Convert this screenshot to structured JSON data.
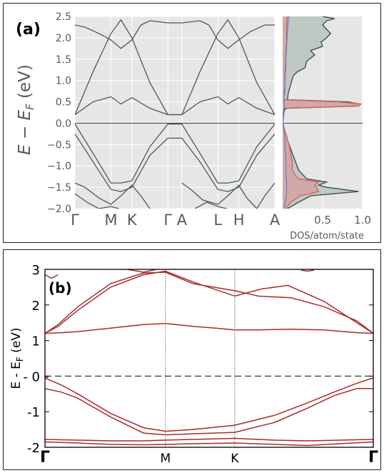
{
  "chart_data": [
    {
      "panel": "(a)",
      "type": "line",
      "subplots": [
        {
          "name": "band-structure",
          "ylabel_main": "E − E",
          "ylabel_sub": "F",
          "ylabel_unit": " (eV)",
          "ylim": [
            -2.0,
            2.5
          ],
          "yticks": [
            -2.0,
            -1.5,
            -1.0,
            -0.5,
            0.0,
            0.5,
            1.0,
            1.5,
            2.0,
            2.5
          ],
          "ytick_labels": [
            "−2.0",
            "−1.5",
            "−1.0",
            "−0.5",
            "0.0",
            "0.5",
            "1.0",
            "1.5",
            "2.0",
            "2.5"
          ],
          "kpoint_labels": [
            "Γ",
            "M",
            "K",
            "Γ",
            "A",
            "L",
            "H",
            "A"
          ],
          "kpoint_positions": [
            0.0,
            0.18,
            0.285,
            0.465,
            0.535,
            0.715,
            0.82,
            1.0
          ],
          "grid": true,
          "background": "#e6e6e6",
          "line_color": "#4a5a55",
          "fermi_line_color": "#3b3f63",
          "fermi_level": 0.0,
          "series": [
            {
              "x": [
                0.0,
                0.09,
                0.18,
                0.23,
                0.285,
                0.375,
                0.465,
                0.535,
                0.625,
                0.715,
                0.765,
                0.82,
                0.91,
                1.0
              ],
              "values": [
                0.2,
                1.2,
                2.1,
                2.42,
                2.0,
                0.95,
                0.2,
                0.2,
                1.2,
                2.1,
                2.42,
                2.0,
                0.95,
                0.2
              ]
            },
            {
              "x": [
                0.0,
                0.09,
                0.18,
                0.23,
                0.285,
                0.375,
                0.465,
                0.535,
                0.625,
                0.715,
                0.765,
                0.82,
                0.91,
                1.0
              ],
              "values": [
                0.2,
                0.5,
                0.62,
                0.45,
                0.6,
                0.35,
                0.2,
                0.2,
                0.5,
                0.62,
                0.45,
                0.6,
                0.35,
                0.2
              ]
            },
            {
              "x": [
                0.0,
                0.05,
                0.12,
                0.18,
                0.23,
                0.285,
                0.33
              ],
              "values": [
                2.3,
                2.25,
                2.1,
                1.95,
                1.75,
                1.95,
                2.3
              ]
            },
            {
              "x": [
                0.33,
                0.375,
                0.465,
                0.535,
                0.625,
                0.67
              ],
              "values": [
                2.3,
                2.4,
                2.35,
                2.35,
                2.4,
                2.3
              ]
            },
            {
              "x": [
                0.67,
                0.715,
                0.765,
                0.82,
                0.88,
                0.95,
                1.0
              ],
              "values": [
                2.3,
                1.95,
                1.75,
                1.95,
                2.15,
                2.3,
                2.3
              ]
            },
            {
              "x": [
                0.0,
                0.09,
                0.18,
                0.23,
                0.285,
                0.375,
                0.465,
                0.535,
                0.625,
                0.715,
                0.765,
                0.82,
                0.91,
                1.0
              ],
              "values": [
                -0.02,
                -0.7,
                -1.4,
                -1.4,
                -1.35,
                -0.55,
                -0.02,
                -0.02,
                -0.7,
                -1.4,
                -1.4,
                -1.35,
                -0.55,
                -0.02
              ]
            },
            {
              "x": [
                0.0,
                0.09,
                0.18,
                0.23,
                0.285,
                0.375,
                0.465,
                0.535,
                0.625,
                0.715,
                0.765,
                0.82,
                0.91,
                1.0
              ],
              "values": [
                -0.25,
                -0.9,
                -1.55,
                -1.6,
                -1.5,
                -0.75,
                -0.35,
                -0.35,
                -0.9,
                -1.55,
                -1.6,
                -1.5,
                -0.75,
                -0.25
              ]
            },
            {
              "x": [
                0.0,
                0.05,
                0.12,
                0.18,
                0.23,
                0.285,
                0.33,
                0.375
              ],
              "values": [
                -1.4,
                -1.5,
                -1.75,
                -1.9,
                -1.7,
                -1.45,
                -1.7,
                -2.0
              ]
            },
            {
              "x": [
                0.0,
                0.06,
                0.12,
                0.18,
                0.22
              ],
              "values": [
                -1.65,
                -1.85,
                -2.0,
                -1.95,
                -2.0
              ]
            },
            {
              "x": [
                0.535,
                0.58,
                0.64,
                0.715,
                0.765,
                0.82,
                0.86,
                0.91,
                0.95,
                1.0
              ],
              "values": [
                -1.4,
                -1.55,
                -1.8,
                -1.9,
                -1.7,
                -1.45,
                -1.75,
                -2.0,
                -1.7,
                -1.4
              ]
            },
            {
              "x": [
                0.6,
                0.66,
                0.715,
                0.76
              ],
              "values": [
                -2.0,
                -1.85,
                -1.95,
                -2.0
              ]
            }
          ]
        },
        {
          "name": "dos",
          "xlabel": "DOS/atom/state",
          "xlim": [
            0.0,
            1.0
          ],
          "xticks": [
            0.5,
            1.0
          ],
          "xtick_labels": [
            "0.5",
            "1.0"
          ],
          "ylim": [
            -2.0,
            2.5
          ],
          "background": "#e6e6e6",
          "series": [
            {
              "name": "total",
              "color": "#3f524c",
              "fill": "#b8c2bd",
              "energies": [
                -2.0,
                -1.85,
                -1.7,
                -1.6,
                -1.5,
                -1.45,
                -1.38,
                -1.3,
                -1.2,
                -1.1,
                -1.0,
                -0.9,
                -0.8,
                -0.7,
                -0.6,
                -0.5,
                -0.4,
                -0.3,
                -0.2,
                -0.05,
                0.0,
                0.3,
                0.35,
                0.4,
                0.45,
                0.5,
                0.55,
                0.7,
                0.9,
                1.1,
                1.2,
                1.3,
                1.45,
                1.6,
                1.7,
                1.8,
                1.9,
                2.0,
                2.1,
                2.2,
                2.3,
                2.4,
                2.45,
                2.5
              ],
              "values": [
                0.06,
                0.2,
                0.35,
                0.95,
                0.55,
                0.45,
                0.55,
                0.3,
                0.25,
                0.2,
                0.18,
                0.16,
                0.14,
                0.12,
                0.1,
                0.08,
                0.06,
                0.05,
                0.03,
                0.01,
                0.0,
                0.02,
                0.05,
                0.85,
                0.95,
                0.82,
                0.06,
                0.07,
                0.1,
                0.13,
                0.18,
                0.28,
                0.3,
                0.4,
                0.35,
                0.5,
                0.48,
                0.55,
                0.6,
                0.55,
                0.5,
                0.55,
                0.65,
                0.5
              ]
            },
            {
              "name": "partial-red",
              "color": "#d66060",
              "fill": "#d4a3a3",
              "energies": [
                -2.0,
                -1.85,
                -1.7,
                -1.6,
                -1.5,
                -1.45,
                -1.38,
                -1.3,
                -1.2,
                -1.1,
                -1.0,
                -0.9,
                -0.8,
                -0.7,
                -0.6,
                -0.5,
                -0.4,
                -0.3,
                -0.2,
                -0.05,
                0.0,
                0.3,
                0.35,
                0.4,
                0.45,
                0.5,
                0.55,
                0.7,
                0.9,
                1.1,
                1.3,
                1.5,
                1.7,
                1.9,
                2.1,
                2.3,
                2.5
              ],
              "values": [
                0.04,
                0.1,
                0.22,
                0.45,
                0.42,
                0.4,
                0.45,
                0.2,
                0.15,
                0.12,
                0.12,
                0.12,
                0.11,
                0.1,
                0.09,
                0.08,
                0.06,
                0.05,
                0.03,
                0.01,
                0.0,
                0.01,
                0.03,
                0.95,
                0.98,
                0.7,
                0.02,
                0.02,
                0.03,
                0.03,
                0.04,
                0.04,
                0.04,
                0.05,
                0.05,
                0.05,
                0.06
              ]
            },
            {
              "name": "partial-blue",
              "color": "#6a86c8",
              "fill": "none",
              "energies": [
                -2.0,
                -1.8,
                -1.6,
                -1.4,
                -1.2,
                -1.0,
                -0.8,
                -0.6,
                -0.4,
                -0.2,
                0.0,
                0.2,
                0.4,
                0.6,
                0.8,
                1.0,
                1.2,
                1.5,
                1.8,
                2.1,
                2.4,
                2.5
              ],
              "values": [
                0.02,
                0.04,
                0.05,
                0.05,
                0.04,
                0.04,
                0.04,
                0.03,
                0.03,
                0.02,
                0.0,
                0.01,
                0.02,
                0.02,
                0.03,
                0.03,
                0.03,
                0.04,
                0.05,
                0.06,
                0.07,
                0.08
              ]
            }
          ]
        }
      ]
    },
    {
      "panel": "(b)",
      "type": "line",
      "ylabel": "E - E",
      "ylabel_sub": "F",
      "ylabel_unit": " (eV)",
      "ylim": [
        -2.0,
        3.0
      ],
      "yticks": [
        -2,
        -1,
        0,
        1,
        2,
        3
      ],
      "ytick_labels": [
        "-2",
        "-1",
        "- 0",
        "1",
        "2",
        "3"
      ],
      "kpoint_labels": [
        "Γ",
        "M",
        "K",
        "Γ"
      ],
      "kpoint_positions": [
        0.0,
        0.367,
        0.578,
        1.0
      ],
      "line_color": "#a82c2c",
      "fermi_level": 0.0,
      "series": [
        {
          "x": [
            0.0,
            0.05,
            0.1,
            0.2,
            0.3,
            0.367,
            0.45,
            0.52,
            0.578,
            0.65,
            0.75,
            0.85,
            0.95,
            1.0
          ],
          "values": [
            1.2,
            1.22,
            1.25,
            1.35,
            1.45,
            1.48,
            1.4,
            1.35,
            1.3,
            1.3,
            1.32,
            1.3,
            1.22,
            1.2
          ]
        },
        {
          "x": [
            0.0,
            0.04,
            0.1,
            0.2,
            0.3,
            0.367,
            0.45,
            0.578,
            0.66,
            0.74,
            0.85,
            0.95,
            1.0
          ],
          "values": [
            1.2,
            1.4,
            1.85,
            2.5,
            2.85,
            2.95,
            2.65,
            2.25,
            2.45,
            2.55,
            2.1,
            1.5,
            1.2
          ]
        },
        {
          "x": [
            0.0,
            0.04,
            0.1,
            0.2,
            0.3,
            0.367,
            0.45,
            0.578,
            0.65,
            0.75,
            0.85,
            0.95,
            1.0
          ],
          "values": [
            1.2,
            1.45,
            1.95,
            2.6,
            2.9,
            2.92,
            2.6,
            2.4,
            2.25,
            2.2,
            1.95,
            1.55,
            1.2
          ]
        },
        {
          "x": [
            0.0,
            0.02,
            0.04
          ],
          "values": [
            2.85,
            2.75,
            2.85
          ]
        },
        {
          "x": [
            0.25,
            0.3,
            0.34
          ],
          "values": [
            3.0,
            2.92,
            3.0
          ]
        },
        {
          "x": [
            0.78,
            0.8,
            0.82
          ],
          "values": [
            2.98,
            2.95,
            2.98
          ]
        },
        {
          "x": [
            0.0,
            0.05,
            0.1,
            0.2,
            0.3,
            0.367,
            0.45,
            0.578,
            0.7,
            0.8,
            0.88,
            0.95,
            1.0
          ],
          "values": [
            -0.05,
            -0.25,
            -0.5,
            -1.05,
            -1.45,
            -1.55,
            -1.5,
            -1.38,
            -1.1,
            -0.75,
            -0.45,
            -0.2,
            -0.05
          ]
        },
        {
          "x": [
            0.0,
            0.05,
            0.1,
            0.2,
            0.3,
            0.367,
            0.45,
            0.578,
            0.7,
            0.8,
            0.88,
            0.95,
            1.0
          ],
          "values": [
            -0.35,
            -0.45,
            -0.62,
            -1.15,
            -1.6,
            -1.65,
            -1.62,
            -1.58,
            -1.3,
            -0.9,
            -0.55,
            -0.35,
            -0.35
          ]
        },
        {
          "x": [
            0.0,
            0.1,
            0.2,
            0.3,
            0.367,
            0.45,
            0.578,
            0.7,
            0.8,
            0.9,
            1.0
          ],
          "values": [
            -1.78,
            -1.8,
            -1.82,
            -1.82,
            -1.8,
            -1.78,
            -1.75,
            -1.8,
            -1.82,
            -1.8,
            -1.78
          ]
        },
        {
          "x": [
            0.0,
            0.1,
            0.2,
            0.3,
            0.367,
            0.45,
            0.578,
            0.7,
            0.8,
            0.9,
            1.0
          ],
          "values": [
            -1.85,
            -1.88,
            -1.92,
            -1.93,
            -1.92,
            -1.9,
            -1.88,
            -1.92,
            -1.95,
            -1.9,
            -1.85
          ]
        },
        {
          "x": [
            0.0,
            0.005,
            0.01
          ],
          "values": [
            -0.02,
            -0.05,
            -0.02
          ]
        }
      ]
    }
  ]
}
